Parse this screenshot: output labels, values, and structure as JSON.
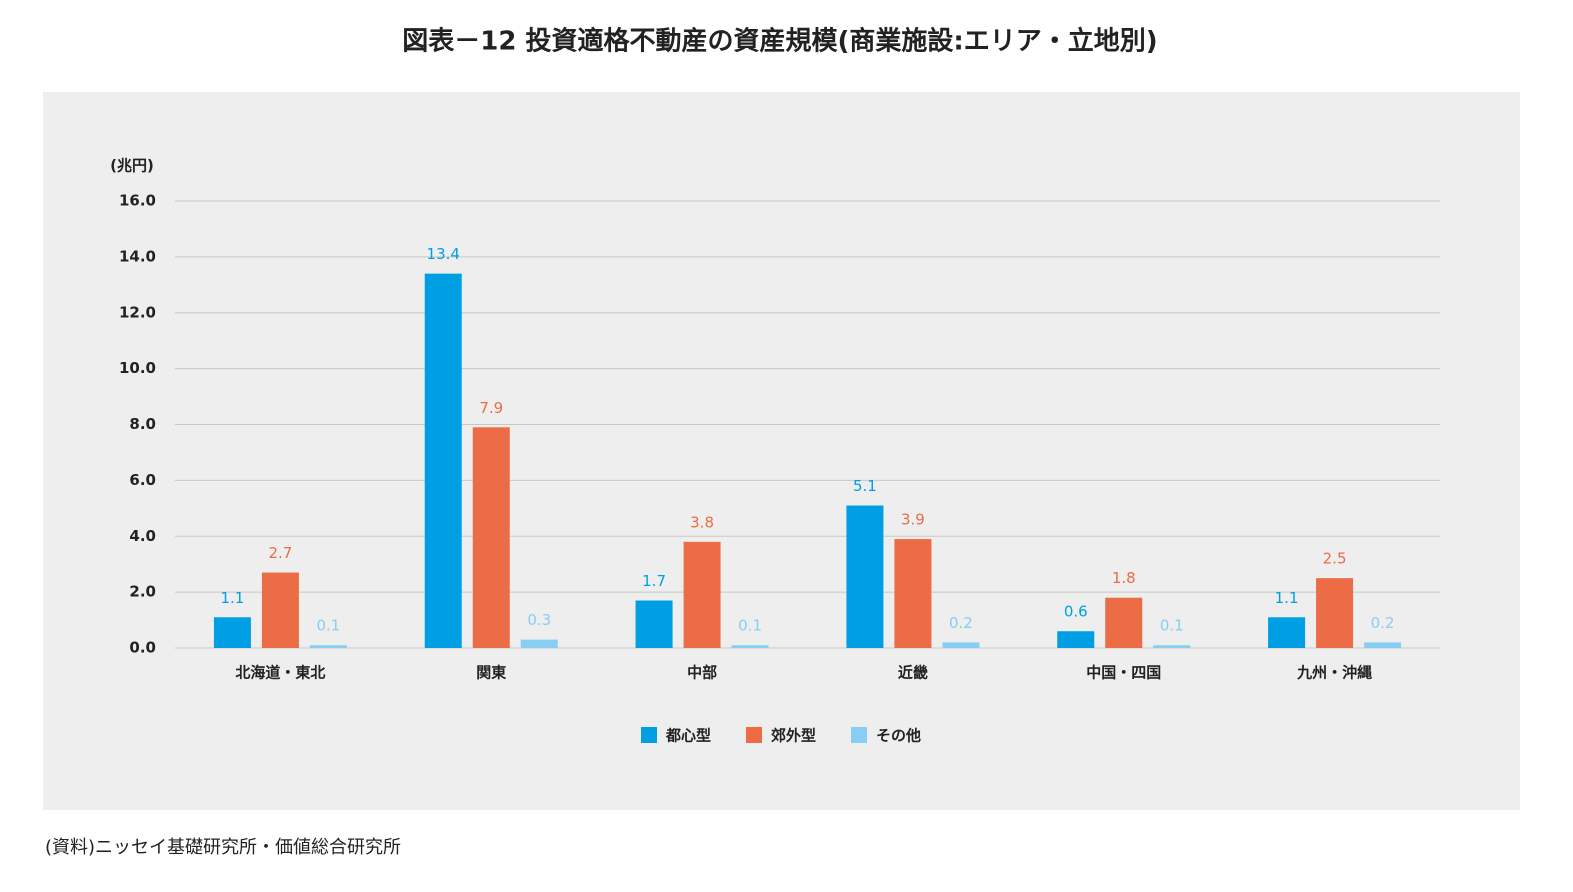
{
  "chart_data": {
    "type": "bar",
    "title": "図表－12 投資適格不動産の資産規模(商業施設:エリア・立地別)",
    "y_unit": "(兆円)",
    "categories": [
      "北海道・東北",
      "関東",
      "中部",
      "近畿",
      "中国・四国",
      "九州・沖縄"
    ],
    "series": [
      {
        "name": "都心型",
        "color": "#009fe3",
        "values": [
          1.1,
          13.4,
          1.7,
          5.1,
          0.6,
          1.1
        ]
      },
      {
        "name": "郊外型",
        "color": "#ec6c45",
        "values": [
          2.7,
          7.9,
          3.8,
          3.9,
          1.8,
          2.5
        ]
      },
      {
        "name": "その他",
        "color": "#86cff2",
        "values": [
          0.1,
          0.3,
          0.1,
          0.2,
          0.1,
          0.2
        ]
      }
    ],
    "ylim": [
      0,
      16
    ],
    "yticks": [
      {
        "value": 0,
        "label": "0.0"
      },
      {
        "value": 2,
        "label": "2.0"
      },
      {
        "value": 4,
        "label": "4.0"
      },
      {
        "value": 6,
        "label": "6.0"
      },
      {
        "value": 8,
        "label": "8.0"
      },
      {
        "value": 10,
        "label": "10.0"
      },
      {
        "value": 12,
        "label": "12.0"
      },
      {
        "value": 14,
        "label": "14.0"
      },
      {
        "value": 16,
        "label": "16.0"
      }
    ],
    "grid": true,
    "legend": "bottom",
    "source": "(資料)ニッセイ基礎研究所・価値総合研究所"
  }
}
